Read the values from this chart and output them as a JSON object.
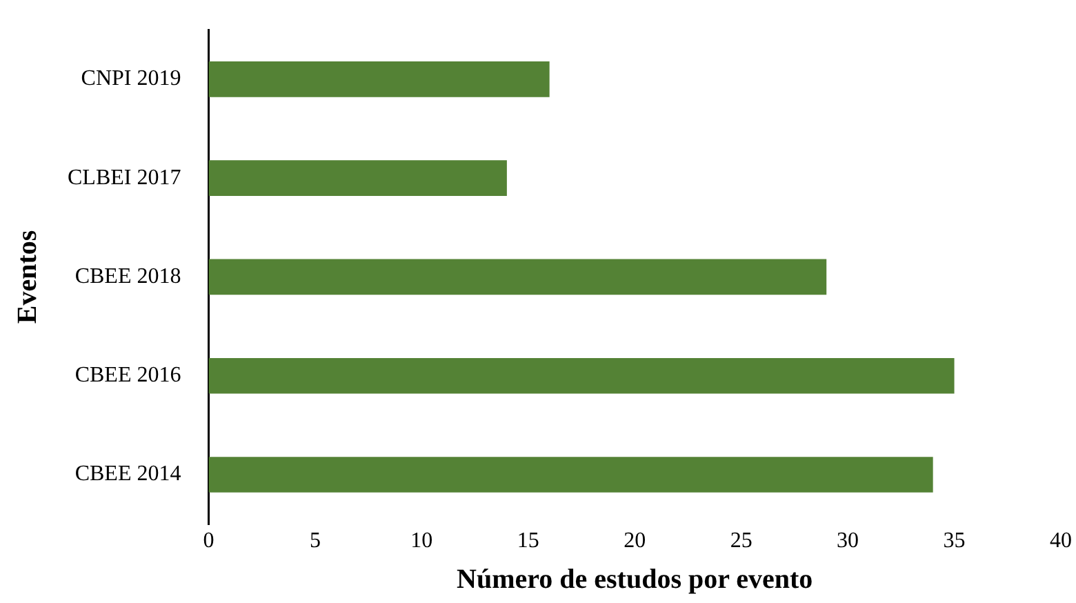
{
  "chart_data": {
    "type": "bar",
    "orientation": "horizontal",
    "xlabel": "Número de estudos por evento",
    "ylabel": "Eventos",
    "categories": [
      "CNPI 2019",
      "CLBEI 2017",
      "CBEE 2018",
      "CBEE 2016",
      "CBEE 2014"
    ],
    "values": [
      16,
      14,
      29,
      35,
      34
    ],
    "color": "#548235",
    "xlim": [
      0,
      40
    ],
    "xticks": [
      0,
      5,
      10,
      15,
      20,
      25,
      30,
      35,
      40
    ],
    "grid": false,
    "legend": false
  }
}
